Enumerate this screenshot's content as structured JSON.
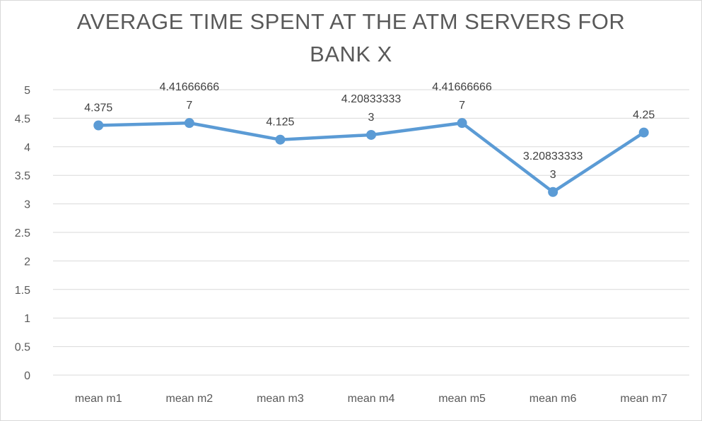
{
  "chart_data": {
    "type": "line",
    "title_lines": [
      "AVERAGE  TIME SPENT AT THE ATM SERVERS FOR",
      "BANK X"
    ],
    "xlabel": "",
    "ylabel": "",
    "categories": [
      "mean m1",
      "mean m2",
      "mean m3",
      "mean m4",
      "mean m5",
      "mean m6",
      "mean m7"
    ],
    "series": [
      {
        "values": [
          4.375,
          4.416666667,
          4.125,
          4.208333333,
          4.416666667,
          3.208333333,
          4.25
        ],
        "data_labels": [
          [
            "4.375"
          ],
          [
            "4.41666666",
            "7"
          ],
          [
            "4.125"
          ],
          [
            "4.20833333",
            "3"
          ],
          [
            "4.41666666",
            "7"
          ],
          [
            "3.20833333",
            "3"
          ],
          [
            "4.25"
          ]
        ],
        "color": "#5b9bd5"
      }
    ],
    "ylim": [
      0,
      5
    ],
    "yticks": [
      "0",
      "0.5",
      "1",
      "1.5",
      "2",
      "2.5",
      "3",
      "3.5",
      "4",
      "4.5",
      "5"
    ],
    "grid": true,
    "legend": "none"
  }
}
